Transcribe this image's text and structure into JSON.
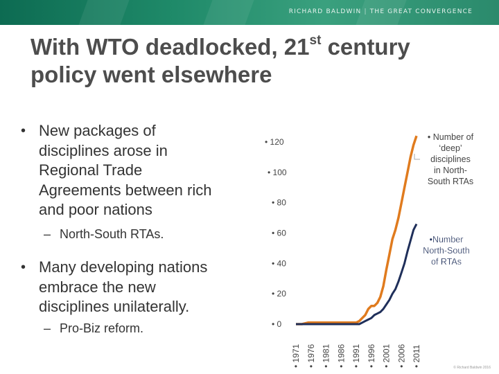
{
  "header": {
    "brand_author": "RICHARD BALDWIN",
    "brand_separator": "|",
    "brand_book": "THE GREAT CONVERGENCE",
    "colors": {
      "band_dark": "#0d6b52",
      "band_light": "#3aa07e"
    }
  },
  "title": {
    "line1_pre": "With WTO deadlocked, 21",
    "line1_sup": "st",
    "line1_post": " century",
    "line2": "policy went elsewhere"
  },
  "bullets": [
    {
      "text_lines": [
        "New packages of",
        "disciplines arose in",
        "Regional Trade",
        "Agreements between rich",
        "and poor nations"
      ],
      "sub": "North-South RTAs."
    },
    {
      "text_lines": [
        "Many developing nations",
        "embrace the new",
        "disciplines unilaterally."
      ],
      "sub": "Pro-Biz reform."
    }
  ],
  "bullet_glyph": "•",
  "dash_glyph": "–",
  "chart_data": {
    "type": "line",
    "title": "",
    "x": [
      1971,
      1973,
      1975,
      1977,
      1979,
      1981,
      1983,
      1985,
      1987,
      1989,
      1991,
      1992,
      1993,
      1994,
      1995,
      1996,
      1997,
      1998,
      1999,
      2000,
      2001,
      2002,
      2003,
      2004,
      2005,
      2006,
      2007,
      2008,
      2009,
      2010,
      2011
    ],
    "x_tick_labels": [
      "• 1971",
      "• 1976",
      "• 1981",
      "• 1986",
      "• 1991",
      "• 1996",
      "• 2001",
      "• 2006",
      "• 2011"
    ],
    "y_tick_labels": [
      "• 0",
      "• 20",
      "• 40",
      "• 60",
      "• 80",
      "• 100",
      "• 120"
    ],
    "ylim": [
      0,
      120
    ],
    "series": [
      {
        "name": "• Number of ‘deep’ disciplines in North-South RTAs",
        "color": "#e07b1e",
        "values": [
          0,
          0,
          1,
          1,
          1,
          1,
          1,
          1,
          1,
          1,
          1,
          2,
          4,
          6,
          10,
          12,
          12,
          14,
          18,
          25,
          36,
          46,
          56,
          62,
          70,
          80,
          90,
          100,
          110,
          118,
          124
        ]
      },
      {
        "name": "• Number North-South of RTAs",
        "color": "#1f2f5a",
        "values": [
          0,
          0,
          0,
          0,
          0,
          0,
          0,
          0,
          0,
          0,
          0,
          0,
          1,
          2,
          3,
          4,
          6,
          7,
          8,
          10,
          13,
          16,
          20,
          23,
          28,
          34,
          40,
          48,
          55,
          62,
          66
        ]
      }
    ]
  },
  "copyright": "© Richard Baldwin 2016"
}
